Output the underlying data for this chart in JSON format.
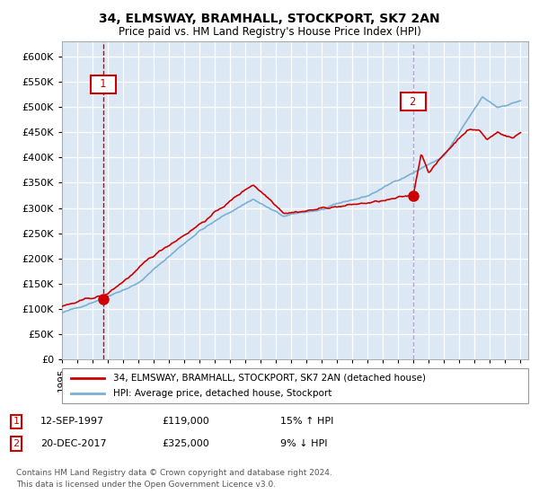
{
  "title": "34, ELMSWAY, BRAMHALL, STOCKPORT, SK7 2AN",
  "subtitle": "Price paid vs. HM Land Registry's House Price Index (HPI)",
  "ylim": [
    0,
    620000
  ],
  "yticks": [
    0,
    50000,
    100000,
    150000,
    200000,
    250000,
    300000,
    350000,
    400000,
    450000,
    500000,
    550000,
    600000
  ],
  "xlim_start": 1995.0,
  "xlim_end": 2025.5,
  "xticks": [
    1995,
    1996,
    1997,
    1998,
    1999,
    2000,
    2001,
    2002,
    2003,
    2004,
    2005,
    2006,
    2007,
    2008,
    2009,
    2010,
    2011,
    2012,
    2013,
    2014,
    2015,
    2016,
    2017,
    2018,
    2019,
    2020,
    2021,
    2022,
    2023,
    2024,
    2025
  ],
  "sale1_date": 1997.7,
  "sale1_price": 119000,
  "sale1_label": "1",
  "sale1_date_str": "12-SEP-1997",
  "sale1_price_str": "£119,000",
  "sale1_hpi_str": "15% ↑ HPI",
  "sale2_date": 2017.97,
  "sale2_price": 325000,
  "sale2_label": "2",
  "sale2_date_str": "20-DEC-2017",
  "sale2_price_str": "£325,000",
  "sale2_hpi_str": "9% ↓ HPI",
  "property_color": "#cc0000",
  "hpi_color": "#7aafd4",
  "vline1_color": "#cc0000",
  "vline2_color": "#aaaacc",
  "grid_color": "#cccccc",
  "chart_bg": "#dce9f5",
  "background_color": "#ffffff",
  "legend_label_property": "34, ELMSWAY, BRAMHALL, STOCKPORT, SK7 2AN (detached house)",
  "legend_label_hpi": "HPI: Average price, detached house, Stockport",
  "footnote1": "Contains HM Land Registry data © Crown copyright and database right 2024.",
  "footnote2": "This data is licensed under the Open Government Licence v3.0."
}
